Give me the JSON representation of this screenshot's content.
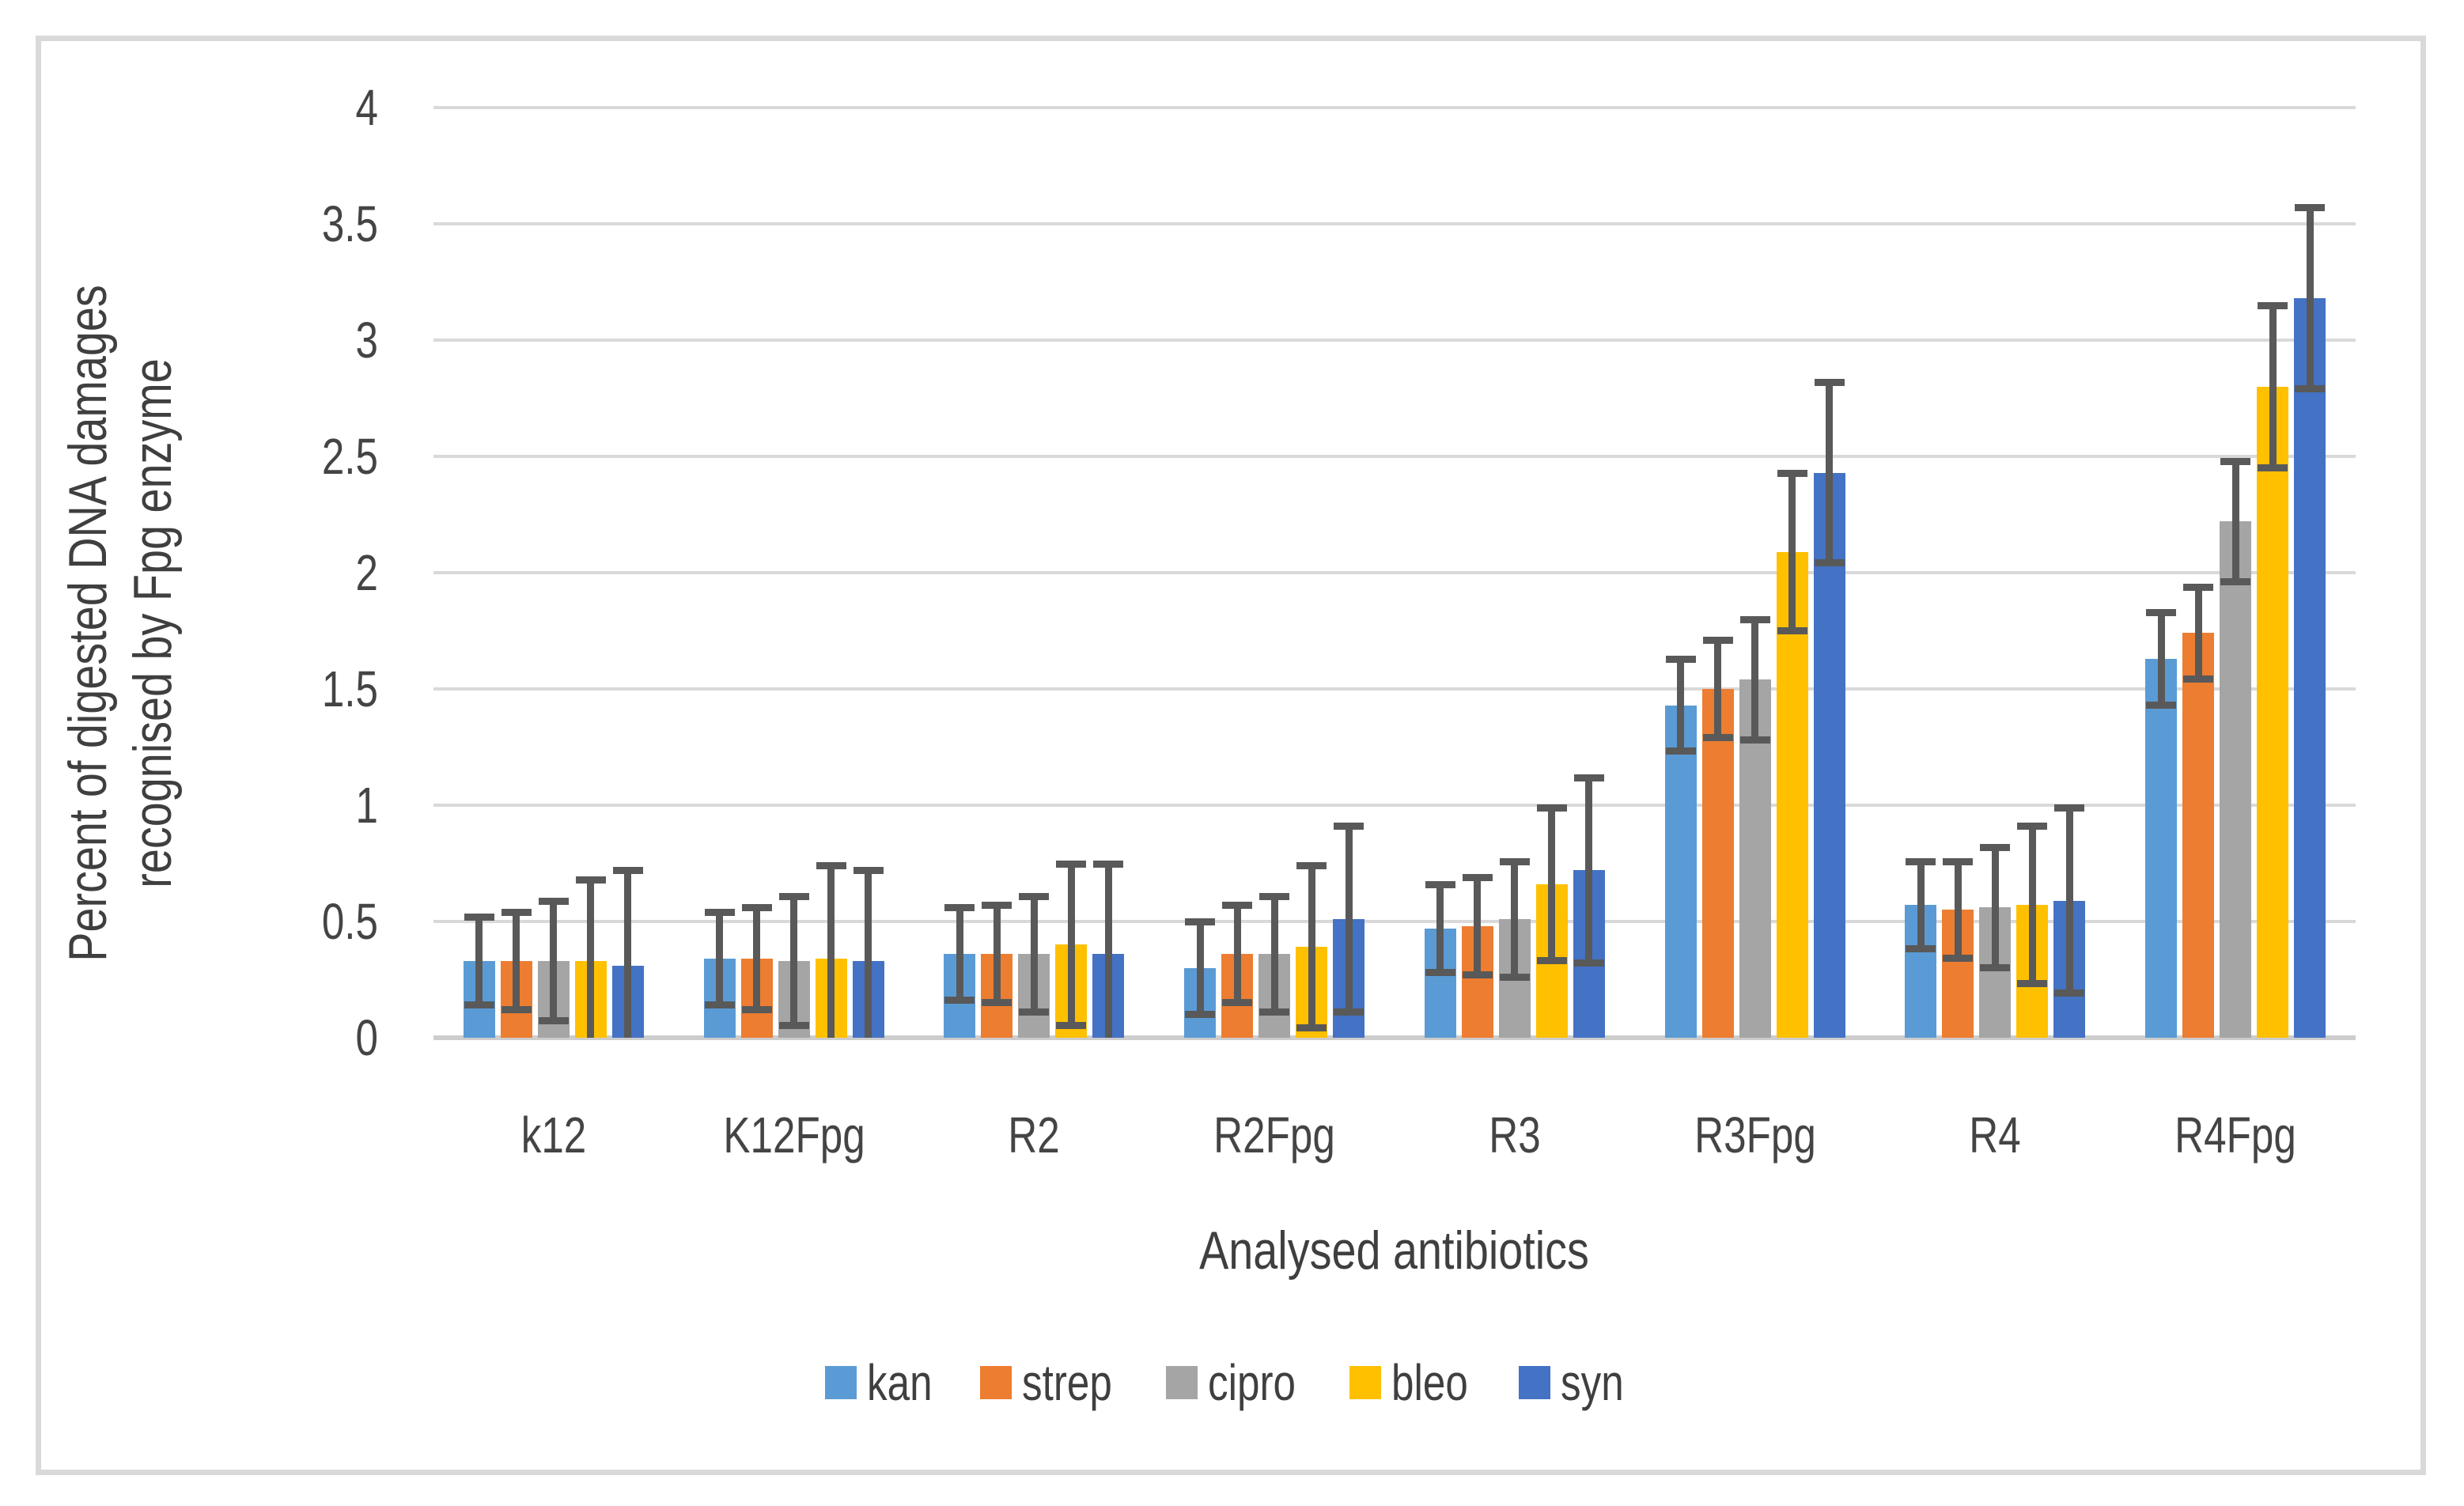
{
  "figure": {
    "background": "#ffffff",
    "border_color": "#d9d9d9"
  },
  "chart_data": {
    "type": "bar",
    "title": "",
    "xlabel": "Analysed antibiotics",
    "ylabel_line1": "Percent of digested DNA damages",
    "ylabel_line2": "recognised by Fpg enzyme",
    "categories": [
      "k12",
      "K12Fpg",
      "R2",
      "R2Fpg",
      "R3",
      "R3Fpg",
      "R4",
      "R4Fpg"
    ],
    "series": [
      {
        "name": "kan",
        "color": "#5B9BD5",
        "values": [
          0.33,
          0.34,
          0.36,
          0.3,
          0.47,
          1.43,
          0.57,
          1.63
        ],
        "errors": [
          0.19,
          0.2,
          0.2,
          0.2,
          0.19,
          0.2,
          0.19,
          0.2
        ]
      },
      {
        "name": "strep",
        "color": "#ED7D31",
        "values": [
          0.33,
          0.34,
          0.36,
          0.36,
          0.48,
          1.5,
          0.55,
          1.74
        ],
        "errors": [
          0.21,
          0.22,
          0.21,
          0.21,
          0.21,
          0.21,
          0.21,
          0.2
        ]
      },
      {
        "name": "cipro",
        "color": "#A5A5A5",
        "values": [
          0.33,
          0.33,
          0.36,
          0.36,
          0.51,
          1.54,
          0.56,
          2.22
        ],
        "errors": [
          0.26,
          0.28,
          0.25,
          0.25,
          0.25,
          0.26,
          0.26,
          0.26
        ]
      },
      {
        "name": "bleo",
        "color": "#FFC000",
        "values": [
          0.33,
          0.34,
          0.4,
          0.39,
          0.66,
          2.09,
          0.57,
          2.8
        ],
        "errors": [
          0.35,
          0.4,
          0.35,
          0.35,
          0.33,
          0.34,
          0.34,
          0.35
        ]
      },
      {
        "name": "syn",
        "color": "#4472C4",
        "values": [
          0.31,
          0.33,
          0.36,
          0.51,
          0.72,
          2.43,
          0.59,
          3.18
        ],
        "errors": [
          0.41,
          0.39,
          0.39,
          0.4,
          0.4,
          0.39,
          0.4,
          0.39
        ]
      }
    ],
    "yticks": [
      0,
      0.5,
      1,
      1.5,
      2,
      2.5,
      3,
      3.5,
      4
    ],
    "ytick_labels": [
      "0",
      "0.5",
      "1",
      "1.5",
      "2",
      "2.5",
      "3",
      "3.5",
      "4"
    ],
    "ylim": [
      0,
      4
    ],
    "grid": "horizontal",
    "legend_position": "bottom",
    "legend_labels": [
      "kan",
      "strep",
      "cipro",
      "bleo",
      "syn"
    ],
    "error_bar_color": "#595959",
    "gridline_color": "#d9d9d9",
    "axis_text_color": "#444444"
  }
}
